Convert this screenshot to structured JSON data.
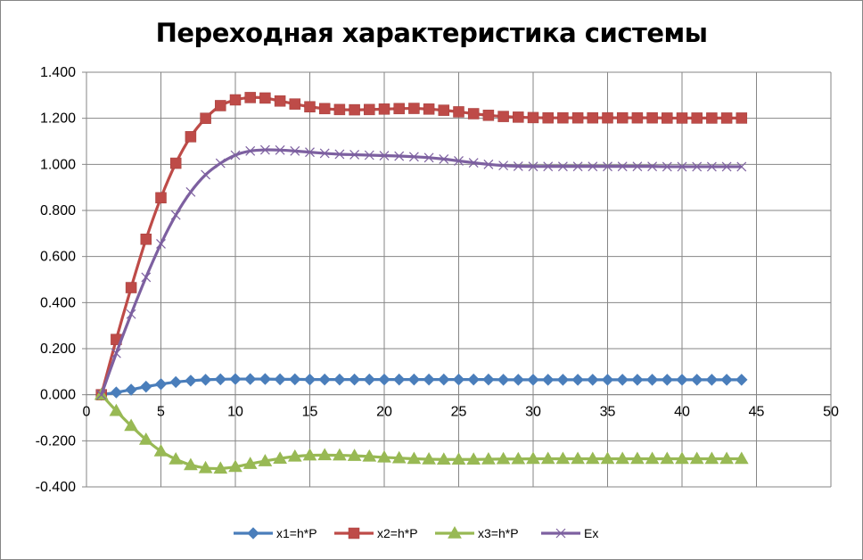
{
  "chart_data": {
    "type": "line",
    "title": "Переходная характеристика системы",
    "xlabel": "",
    "ylabel": "",
    "xlim": [
      0,
      50
    ],
    "ylim": [
      -0.4,
      1.4
    ],
    "xticks": [
      "0",
      "5",
      "10",
      "15",
      "20",
      "25",
      "30",
      "35",
      "40",
      "45",
      "50"
    ],
    "yticks": [
      "-0.400",
      "-0.200",
      "0.000",
      "0.200",
      "0.400",
      "0.600",
      "0.800",
      "1.000",
      "1.200",
      "1.400"
    ],
    "grid": true,
    "legend_position": "bottom",
    "x": [
      1,
      2,
      3,
      4,
      5,
      6,
      7,
      8,
      9,
      10,
      11,
      12,
      13,
      14,
      15,
      16,
      17,
      18,
      19,
      20,
      21,
      22,
      23,
      24,
      25,
      26,
      27,
      28,
      29,
      30,
      31,
      32,
      33,
      34,
      35,
      36,
      37,
      38,
      39,
      40,
      41,
      42,
      43,
      44
    ],
    "series": [
      {
        "name": "x1=h*P",
        "color": "#4a7ebb",
        "marker": "diamond",
        "values": [
          0.0,
          0.01,
          0.022,
          0.035,
          0.046,
          0.055,
          0.061,
          0.065,
          0.067,
          0.068,
          0.068,
          0.068,
          0.067,
          0.067,
          0.066,
          0.066,
          0.066,
          0.066,
          0.066,
          0.066,
          0.066,
          0.066,
          0.066,
          0.066,
          0.066,
          0.066,
          0.066,
          0.065,
          0.065,
          0.065,
          0.065,
          0.065,
          0.065,
          0.065,
          0.065,
          0.065,
          0.065,
          0.065,
          0.065,
          0.065,
          0.065,
          0.065,
          0.065,
          0.065
        ]
      },
      {
        "name": "x2=h*P",
        "color": "#be4b48",
        "marker": "square",
        "values": [
          0.0,
          0.24,
          0.465,
          0.675,
          0.855,
          1.005,
          1.12,
          1.2,
          1.255,
          1.28,
          1.29,
          1.288,
          1.275,
          1.262,
          1.25,
          1.242,
          1.238,
          1.237,
          1.238,
          1.24,
          1.242,
          1.243,
          1.24,
          1.235,
          1.228,
          1.22,
          1.213,
          1.208,
          1.205,
          1.203,
          1.202,
          1.202,
          1.202,
          1.202,
          1.202,
          1.202,
          1.202,
          1.202,
          1.201,
          1.201,
          1.201,
          1.201,
          1.201,
          1.201
        ]
      },
      {
        "name": "x3=h*P",
        "color": "#98b954",
        "marker": "triangle",
        "values": [
          0.0,
          -0.07,
          -0.135,
          -0.195,
          -0.245,
          -0.28,
          -0.305,
          -0.318,
          -0.32,
          -0.313,
          -0.3,
          -0.288,
          -0.277,
          -0.268,
          -0.263,
          -0.262,
          -0.263,
          -0.265,
          -0.268,
          -0.272,
          -0.275,
          -0.278,
          -0.28,
          -0.281,
          -0.281,
          -0.281,
          -0.28,
          -0.279,
          -0.279,
          -0.278,
          -0.278,
          -0.278,
          -0.278,
          -0.278,
          -0.278,
          -0.278,
          -0.278,
          -0.278,
          -0.278,
          -0.278,
          -0.278,
          -0.278,
          -0.278,
          -0.278
        ]
      },
      {
        "name": "Ex",
        "color": "#7d60a0",
        "marker": "x",
        "values": [
          0.0,
          0.18,
          0.35,
          0.51,
          0.655,
          0.78,
          0.88,
          0.955,
          1.005,
          1.04,
          1.058,
          1.063,
          1.062,
          1.058,
          1.053,
          1.048,
          1.044,
          1.042,
          1.04,
          1.038,
          1.036,
          1.033,
          1.029,
          1.023,
          1.015,
          1.007,
          1.0,
          0.995,
          0.992,
          0.991,
          0.991,
          0.991,
          0.991,
          0.991,
          0.991,
          0.991,
          0.991,
          0.991,
          0.99,
          0.99,
          0.99,
          0.99,
          0.99,
          0.99
        ]
      }
    ]
  }
}
